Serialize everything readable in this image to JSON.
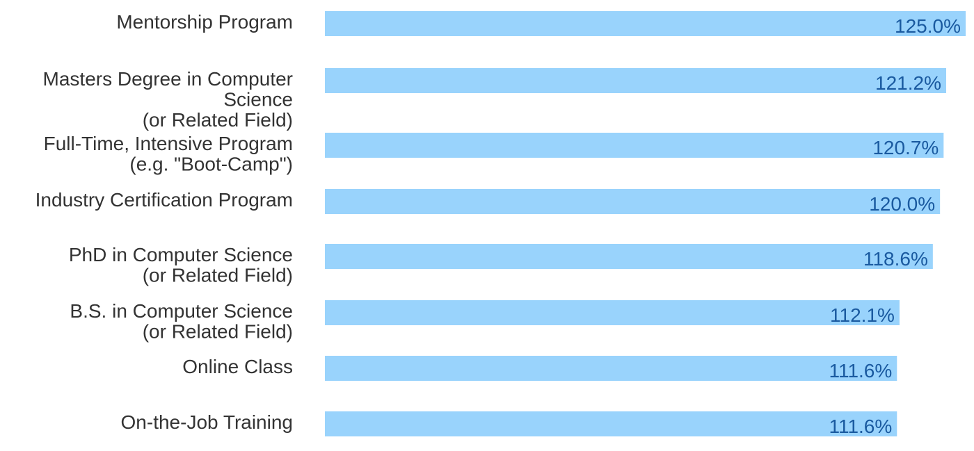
{
  "chart_data": {
    "type": "bar",
    "orientation": "horizontal",
    "title": "",
    "xlabel": "",
    "ylabel": "",
    "grid": false,
    "legend": "none",
    "bar_color": "#99d3fc",
    "label_color": "#1a5aa0",
    "text_color": "#333333",
    "xlim": [
      0,
      125
    ],
    "categories": [
      [
        "Mentorship Program"
      ],
      [
        "Masters Degree in Computer",
        "Science",
        "(or Related Field)"
      ],
      [
        "Full-Time, Intensive Program",
        "(e.g. \"Boot-Camp\")"
      ],
      [
        "Industry Certification Program"
      ],
      [
        "PhD in Computer Science",
        "(or Related Field)"
      ],
      [
        "B.S. in Computer Science",
        "(or Related Field)"
      ],
      [
        "Online Class"
      ],
      [
        "On-the-Job Training"
      ]
    ],
    "values": [
      125.0,
      121.2,
      120.7,
      120.0,
      118.6,
      112.1,
      111.6,
      111.6
    ],
    "value_labels": [
      "125.0%",
      "121.2%",
      "120.7%",
      "120.0%",
      "118.6%",
      "112.1%",
      "111.6%",
      "111.6%"
    ]
  }
}
